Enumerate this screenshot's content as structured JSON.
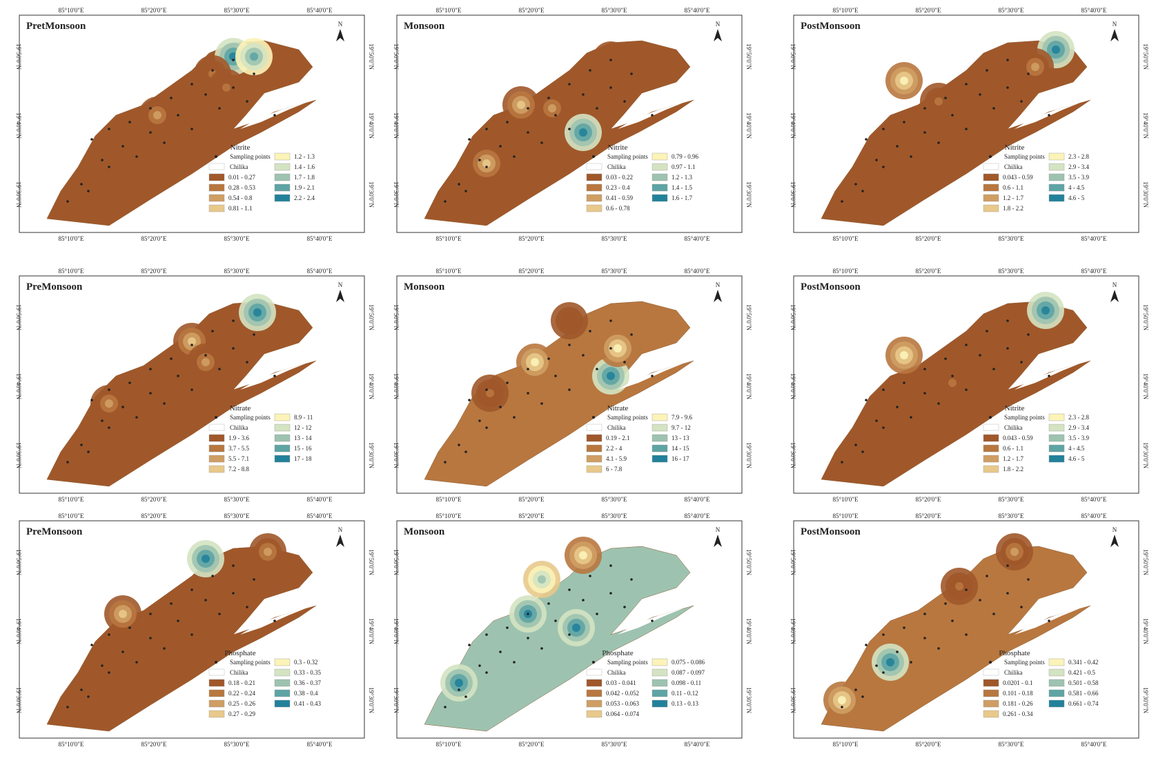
{
  "longitude_labels": [
    "85°10'0\"E",
    "85°20'0\"E",
    "85°30'0\"E",
    "85°40'0\"E"
  ],
  "latitude_labels": [
    "19°50'0\"N",
    "19°40'0\"N",
    "19°30'0\"N"
  ],
  "north": "N",
  "sampling_points": "Sampling points",
  "chilika": "Chilika",
  "legend_colors": [
    "#a0582a",
    "#b8773f",
    "#cf9e63",
    "#e8c98b",
    "#fbf3b8",
    "#d4e3c2",
    "#9dc3b0",
    "#5ea4a4",
    "#22819a"
  ],
  "panels": [
    {
      "title": "PretMonsoon",
      "legend_title": "Nitrite",
      "legend_items": [
        "0.01 - 0.27",
        "0.28 - 0.53",
        "0.54 - 0.8",
        "0.81 - 1.1",
        "1.2 - 1.3",
        "1.4 - 1.6",
        "1.7 - 1.8",
        "1.9 - 2.1",
        "2.2 - 2.4"
      ]
    },
    {
      "title": "Monsoon",
      "legend_title": "Nitrite",
      "legend_items": [
        "0.03 - 0.22",
        "0.23 - 0.4",
        "0.41 - 0.59",
        "0.6 - 0.78",
        "0.79 - 0.96",
        "0.97 - 1.1",
        "1.2 - 1.3",
        "1.4 - 1.5",
        "1.6 - 1.7"
      ]
    },
    {
      "title": "PostMonsoon",
      "legend_title": "Nitrite",
      "legend_items": [
        "0.043 - 0.59",
        "0.6 - 1.1",
        "1.2 - 1.7",
        "1.8 - 2.2",
        "2.3 - 2.8",
        "2.9 - 3.4",
        "3.5 - 3.9",
        "4 - 4.5",
        "4.6 - 5"
      ]
    },
    {
      "title": "PreMonsoon",
      "legend_title": "Nitrate",
      "legend_items": [
        "1.9 - 3.6",
        "3.7 - 5.5",
        "5.5 - 7.1",
        "7.2 - 8.8",
        "8.9 - 11",
        "12 - 12",
        "13 - 14",
        "15 - 16",
        "17 - 18"
      ]
    },
    {
      "title": "Monsoon",
      "legend_title": "Nitrate",
      "legend_items": [
        "0.19 - 2.1",
        "2.2 - 4",
        "4.1 - 5.9",
        "6 - 7.8",
        "7.9 - 9.6",
        "9.7 - 12",
        "13 - 13",
        "14 - 15",
        "16 - 17"
      ]
    },
    {
      "title": "PostMonsoon",
      "legend_title": "Nitrite",
      "legend_items": [
        "0.043 - 0.59",
        "0.6 - 1.1",
        "1.2 - 1.7",
        "1.8 - 2.2",
        "2.3 - 2.8",
        "2.9 - 3.4",
        "3.5 - 3.9",
        "4 - 4.5",
        "4.6 - 5"
      ]
    },
    {
      "title": "PreMonsoon",
      "legend_title": "Phosphate",
      "legend_items": [
        "0.18 - 0.21",
        "0.22 - 0.24",
        "0.25 - 0.26",
        "0.27 - 0.29",
        "0.3 - 0.32",
        "0.33 - 0.35",
        "0.36 - 0.37",
        "0.38 - 0.4",
        "0.41 - 0.43"
      ]
    },
    {
      "title": "Monsoon",
      "legend_title": "Phosphate",
      "legend_items": [
        "0.03 - 0.041",
        "0.042 - 0.052",
        "0.053 - 0.063",
        "0.064 - 0.074",
        "0.075 - 0.086",
        "0.087 - 0.097",
        "0.098 - 0.11",
        "0.11 - 0.12",
        "0.13 - 0.13"
      ]
    },
    {
      "title": "PostMonsoon",
      "legend_title": "Phosphate",
      "legend_items": [
        "0.0201 - 0.1",
        "0.101 - 0.18",
        "0.181 - 0.26",
        "0.261 - 0.34",
        "0.341 - 0.42",
        "0.421 - 0.5",
        "0.501 - 0.58",
        "0.581 - 0.66",
        "0.661 - 0.74"
      ]
    }
  ]
}
